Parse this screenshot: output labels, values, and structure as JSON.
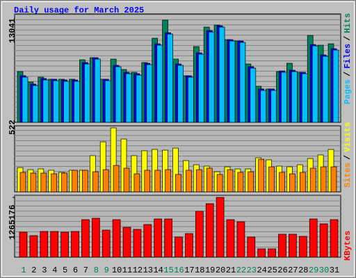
{
  "chart_data": [
    {
      "type": "bar",
      "title": "Daily usage for March 2025",
      "legend_separator": "/",
      "ylim": [
        0,
        13839
      ],
      "yticks": [
        13041
      ],
      "series": [
        {
          "name": "Hits",
          "color": "#00805c",
          "values": [
            6475,
            5145,
            5766,
            5500,
            5500,
            5500,
            7983,
            8249,
            5500,
            8072,
            6741,
            6387,
            7628,
            10733,
            13041,
            8072,
            5943,
            9668,
            12152,
            12418,
            10555,
            10378,
            7451,
            4612,
            4258,
            6475,
            7540,
            6387,
            11088,
            9846,
            10023
          ]
        },
        {
          "name": "Files",
          "color": "#0000ff",
          "values": [
            5950,
            4880,
            5590,
            5500,
            5410,
            5410,
            7630,
            8250,
            5500,
            7270,
            6390,
            6210,
            7540,
            10020,
            11440,
            7450,
            5940,
            8870,
            11710,
            12330,
            10550,
            10380,
            7100,
            4260,
            4260,
            6560,
            6650,
            6390,
            9930,
            8600,
            9400
          ]
        },
        {
          "name": "Pages",
          "color": "#00c0ff",
          "values": [
            5766,
            4701,
            5411,
            5322,
            5233,
            5233,
            7451,
            8072,
            5322,
            7096,
            6209,
            6032,
            7362,
            9846,
            11265,
            7273,
            5766,
            8693,
            11531,
            12152,
            10378,
            10201,
            6919,
            4080,
            4080,
            6387,
            6475,
            6209,
            9757,
            8427,
            9225
          ]
        }
      ]
    },
    {
      "type": "bar",
      "legend_separator": "/",
      "ylim": [
        0,
        539
      ],
      "yticks": [
        522
      ],
      "series": [
        {
          "name": "Visits",
          "color": "#ffff00",
          "values": [
            198,
            181,
            187,
            176,
            159,
            176,
            176,
            295,
            408,
            522,
            431,
            295,
            335,
            346,
            340,
            357,
            255,
            221,
            210,
            164,
            204,
            187,
            187,
            278,
            261,
            210,
            204,
            221,
            272,
            301,
            346
          ]
        },
        {
          "name": "Sites",
          "color": "#ff8000",
          "values": [
            159,
            153,
            153,
            147,
            153,
            176,
            176,
            164,
            181,
            215,
            193,
            147,
            176,
            176,
            181,
            142,
            176,
            181,
            193,
            142,
            181,
            159,
            164,
            266,
            204,
            159,
            147,
            159,
            193,
            204,
            204
          ]
        }
      ]
    },
    {
      "type": "bar",
      "ylim": [
        0,
        1309310
      ],
      "yticks": [
        1265176
      ],
      "categories": [
        "1",
        "2",
        "3",
        "4",
        "5",
        "6",
        "7",
        "8",
        "9",
        "10",
        "11",
        "12",
        "13",
        "14",
        "15",
        "16",
        "17",
        "18",
        "19",
        "20",
        "21",
        "22",
        "23",
        "24",
        "25",
        "26",
        "27",
        "28",
        "29",
        "30",
        "31"
      ],
      "category_colors": [
        "#00805c",
        "#000000",
        "#000000",
        "#000000",
        "#000000",
        "#000000",
        "#000000",
        "#00805c",
        "#00805c",
        "#000000",
        "#000000",
        "#000000",
        "#000000",
        "#000000",
        "#00805c",
        "#00805c",
        "#000000",
        "#000000",
        "#000000",
        "#000000",
        "#000000",
        "#00805c",
        "#00805c",
        "#000000",
        "#000000",
        "#000000",
        "#000000",
        "#000000",
        "#00805c",
        "#00805c",
        "#000000"
      ],
      "series": [
        {
          "name": "KBytes",
          "color": "#ff0000",
          "values": [
            529596,
            456041,
            544307,
            544307,
            529596,
            544307,
            794394,
            823816,
            573729,
            794394,
            632573,
            588440,
            691417,
            809105,
            809105,
            426619,
            500174,
            970926,
            1132747,
            1265176,
            794394,
            750261,
            426619,
            176532,
            176532,
            485463,
            485463,
            441330,
            809105,
            706128,
            794394
          ]
        }
      ]
    }
  ]
}
